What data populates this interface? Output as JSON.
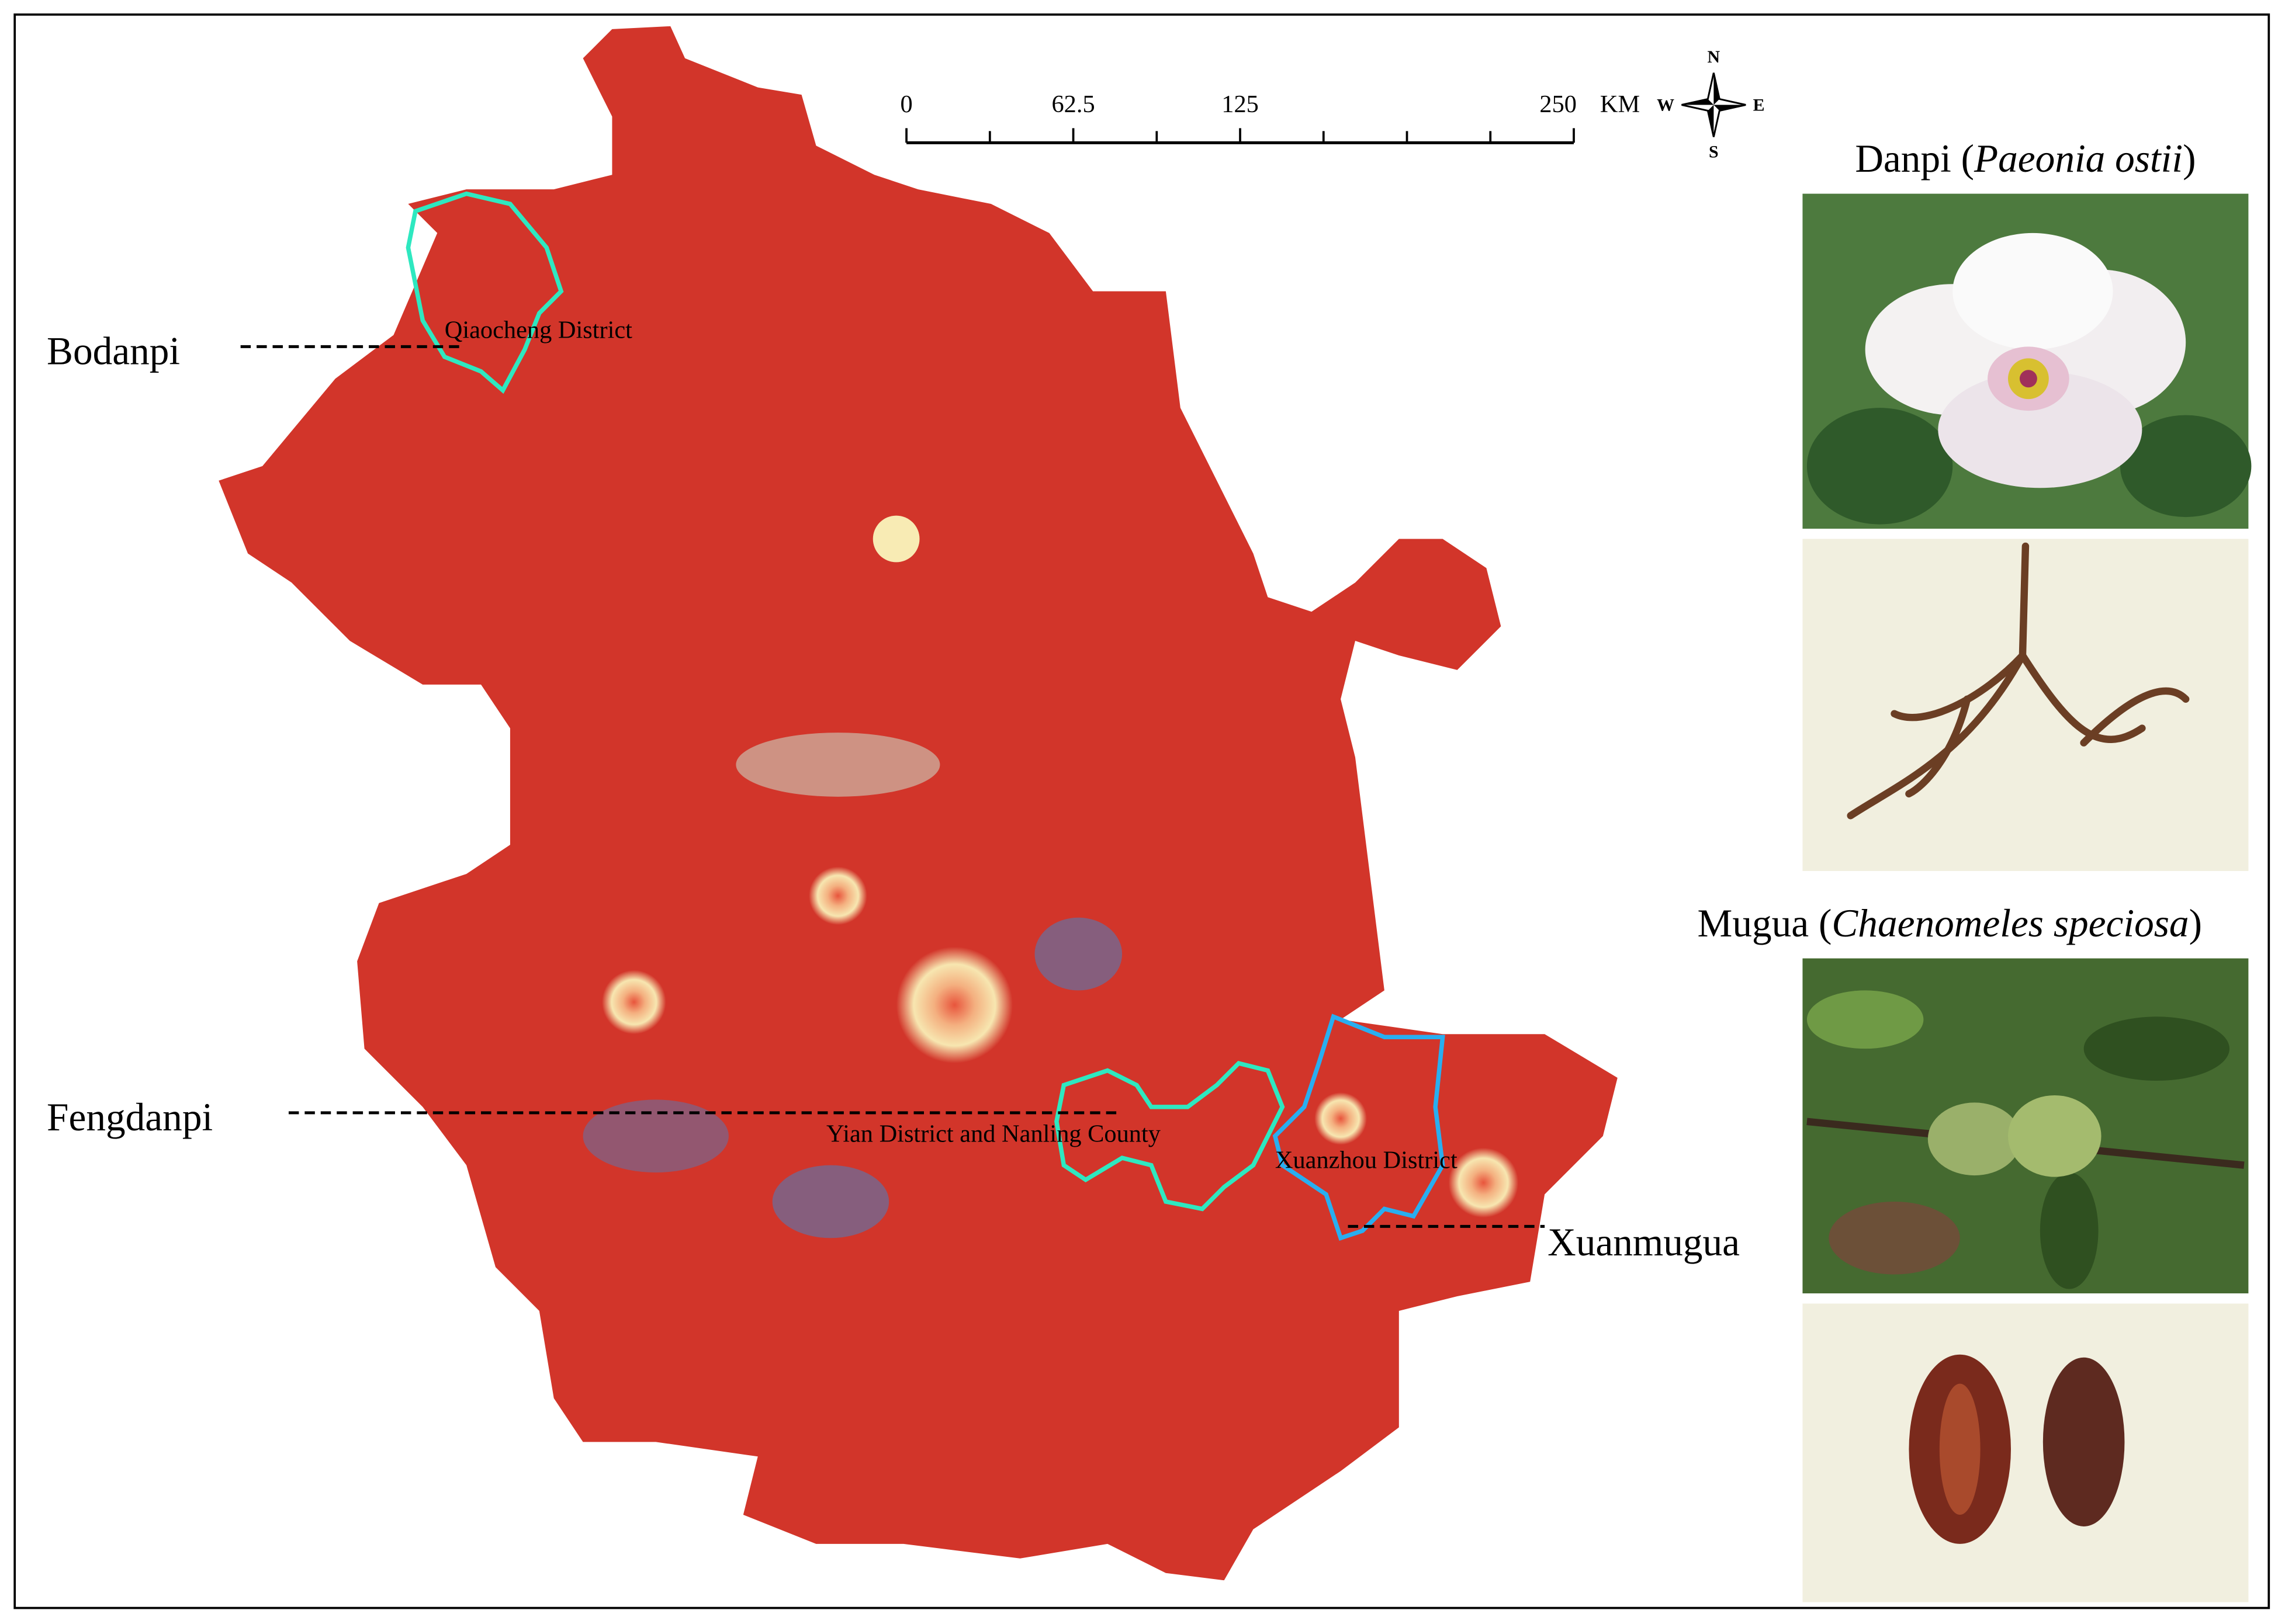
{
  "scale_bar": {
    "ticks": [
      0,
      62.5,
      125,
      250
    ],
    "unit": "KM"
  },
  "compass": {
    "north": "N",
    "south": "S",
    "west": "W",
    "east": "E"
  },
  "regions": [
    {
      "label": "Qiaocheng District",
      "product": "Bodanpi"
    },
    {
      "label": "Yian District and Nanling County",
      "product": "Fengdanpi"
    },
    {
      "label": "Xuanzhou District",
      "product": "Xuanmugua"
    }
  ],
  "photos": [
    {
      "title_prefix": "Danpi (",
      "latin_name": "Paeonia ostii",
      "title_suffix": ")"
    },
    {
      "title_prefix": "Mugua (",
      "latin_name": "Chaenomeles speciosa",
      "title_suffix": ")"
    }
  ]
}
